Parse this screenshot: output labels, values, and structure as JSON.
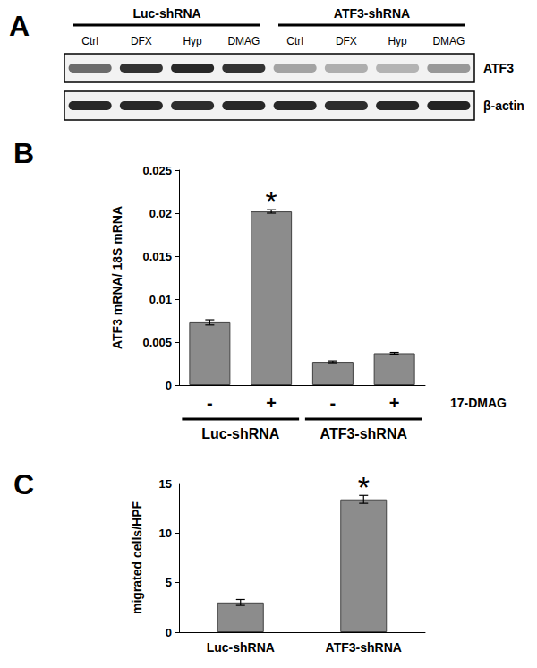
{
  "blot": {
    "label": "A",
    "groups": [
      {
        "name": "Luc-shRNA",
        "lanes": [
          "Ctrl",
          "DFX",
          "Hyp",
          "DMAG"
        ]
      },
      {
        "name": "ATF3-shRNA",
        "lanes": [
          "Ctrl",
          "DFX",
          "Hyp",
          "DMAG"
        ]
      }
    ],
    "rows": [
      {
        "name": "ATF3",
        "intensities": [
          0.6,
          0.85,
          0.9,
          0.85,
          0.35,
          0.3,
          0.28,
          0.4
        ]
      },
      {
        "name": "β-actin",
        "intensities": [
          0.9,
          0.9,
          0.88,
          0.9,
          0.9,
          0.88,
          0.9,
          0.92
        ]
      }
    ]
  },
  "chart_data": [
    {
      "type": "bar",
      "title": "B",
      "categories": [
        "-",
        "+",
        "-",
        "+"
      ],
      "values": [
        0.0073,
        0.0202,
        0.0027,
        0.0037
      ],
      "errors": [
        0.0003,
        0.0002,
        0.0001,
        0.0001
      ],
      "groups": [
        {
          "name": "Luc-shRNA",
          "span": 2
        },
        {
          "name": "ATF3-shRNA",
          "span": 2
        }
      ],
      "x_label": "17-DMAG",
      "y_label": "ATF3 mRNA/ 18S mRNA",
      "ylim": [
        0,
        0.025
      ],
      "yticks": [
        0,
        0.005,
        0.01,
        0.015,
        0.02,
        0.025
      ],
      "annotations": [
        {
          "text": "*",
          "index": 1
        }
      ],
      "color": "#8c8c8c",
      "grid": false
    },
    {
      "type": "bar",
      "title": "C",
      "categories": [
        "Luc-shRNA",
        "ATF3-shRNA"
      ],
      "values": [
        3.0,
        13.4
      ],
      "errors": [
        0.3,
        0.4
      ],
      "y_label": "migrated cells/HPF",
      "ylim": [
        0,
        15
      ],
      "yticks": [
        0,
        5,
        10,
        15
      ],
      "annotations": [
        {
          "text": "*",
          "index": 1
        }
      ],
      "color": "#8c8c8c",
      "grid": false
    }
  ]
}
